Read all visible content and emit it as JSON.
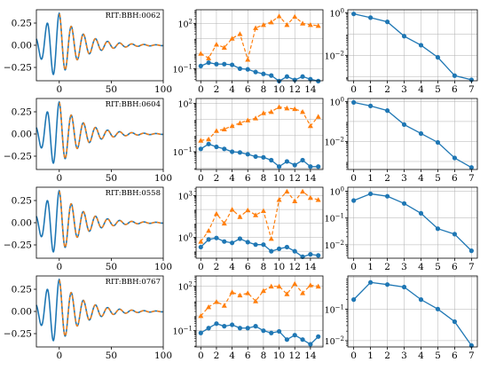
{
  "colors": {
    "blue": "#1f77b4",
    "orange": "#ff7f0e",
    "grid": "#b0b0b0"
  },
  "rows": [
    {
      "label": "RIT:BBH:0062",
      "wave": {
        "type": "line",
        "xlim": [
          -22,
          100
        ],
        "ylim": [
          -0.4,
          0.4
        ],
        "xticks": [
          0,
          50,
          100
        ],
        "yticks": [
          -0.25,
          0.0,
          0.25
        ],
        "ytick_labels": [
          "−0.25",
          "0.00",
          "0.25"
        ],
        "peak": 0.36,
        "omega": 0.54,
        "tau": 22
      },
      "series": {
        "type": "line",
        "scale": "log",
        "ylim_exp": [
          -1.8,
          2.9
        ],
        "major_exp": [
          -1,
          2
        ],
        "x": [
          0,
          1,
          2,
          3,
          4,
          5,
          6,
          7,
          8,
          9,
          10,
          11,
          12,
          13,
          14,
          15
        ],
        "blue": [
          0.15,
          0.25,
          0.2,
          0.2,
          0.18,
          0.1,
          0.09,
          0.06,
          0.045,
          0.035,
          0.015,
          0.03,
          0.018,
          0.03,
          0.02,
          0.015
        ],
        "orange": [
          1.0,
          0.5,
          4.0,
          2.5,
          10.0,
          20.0,
          0.4,
          50.0,
          80.0,
          120.0,
          300.0,
          80.0,
          280.0,
          100.0,
          80.0,
          70.0
        ]
      },
      "modes": {
        "type": "line",
        "scale": "log",
        "ylim_exp": [
          -3.2,
          0.15
        ],
        "major_exp": [
          -2,
          0
        ],
        "x": [
          0,
          1,
          2,
          3,
          4,
          5,
          6,
          7
        ],
        "values": [
          0.9,
          0.6,
          0.38,
          0.08,
          0.03,
          0.008,
          0.0011,
          0.0007
        ]
      }
    },
    {
      "label": "RIT:BBH:0604",
      "wave": {
        "type": "line",
        "xlim": [
          -22,
          100
        ],
        "ylim": [
          -0.4,
          0.4
        ],
        "xticks": [
          0,
          50,
          100
        ],
        "yticks": [
          -0.25,
          0.0,
          0.25
        ],
        "ytick_labels": [
          "−0.25",
          "0.00",
          "0.25"
        ],
        "peak": 0.36,
        "omega": 0.54,
        "tau": 22
      },
      "series": {
        "type": "line",
        "scale": "log",
        "ylim_exp": [
          -2.1,
          2.3
        ],
        "major_exp": [
          -1,
          2
        ],
        "x": [
          0,
          1,
          2,
          3,
          4,
          5,
          6,
          7,
          8,
          9,
          10,
          11,
          12,
          13,
          14,
          15
        ],
        "blue": [
          0.15,
          0.3,
          0.2,
          0.15,
          0.1,
          0.09,
          0.07,
          0.05,
          0.045,
          0.03,
          0.012,
          0.025,
          0.015,
          0.03,
          0.012,
          0.012
        ],
        "orange": [
          0.5,
          0.6,
          2.0,
          2.5,
          4.0,
          6.0,
          9.0,
          12.0,
          25.0,
          30.0,
          60.0,
          50.0,
          45.0,
          30.0,
          4.0,
          15.0
        ]
      },
      "modes": {
        "type": "line",
        "scale": "log",
        "ylim_exp": [
          -3.4,
          0.15
        ],
        "major_exp": [
          -2,
          0
        ],
        "x": [
          0,
          1,
          2,
          3,
          4,
          5,
          6,
          7
        ],
        "values": [
          0.9,
          0.6,
          0.35,
          0.07,
          0.025,
          0.009,
          0.0015,
          0.0005
        ]
      }
    },
    {
      "label": "RIT:BBH:0558",
      "wave": {
        "type": "line",
        "xlim": [
          -22,
          100
        ],
        "ylim": [
          -0.4,
          0.4
        ],
        "xticks": [
          0,
          50,
          100
        ],
        "yticks": [
          -0.25,
          0.0,
          0.25
        ],
        "ytick_labels": [
          "−0.25",
          "0.00",
          "0.25"
        ],
        "peak": 0.36,
        "omega": 0.54,
        "tau": 22
      },
      "series": {
        "type": "line",
        "scale": "log",
        "ylim_exp": [
          -1.5,
          3.6
        ],
        "major_exp": [
          0,
          3
        ],
        "x": [
          0,
          1,
          2,
          3,
          4,
          5,
          6,
          7,
          8,
          9,
          10,
          11,
          12,
          13,
          14,
          15
        ],
        "blue": [
          0.2,
          0.7,
          0.9,
          0.5,
          0.4,
          0.8,
          0.45,
          0.3,
          0.3,
          0.1,
          0.15,
          0.2,
          0.1,
          0.04,
          0.06,
          0.05
        ],
        "orange": [
          0.5,
          3.0,
          50.0,
          10.0,
          100.0,
          30.0,
          90.0,
          40.0,
          80.0,
          0.8,
          500.0,
          2000.0,
          400.0,
          2000.0,
          700.0,
          500.0
        ]
      },
      "modes": {
        "type": "line",
        "scale": "log",
        "ylim_exp": [
          -2.5,
          0.15
        ],
        "major_exp": [
          -2,
          -1,
          0
        ],
        "x": [
          0,
          1,
          2,
          3,
          4,
          5,
          6,
          7
        ],
        "values": [
          0.45,
          0.8,
          0.65,
          0.35,
          0.15,
          0.04,
          0.025,
          0.006
        ]
      }
    },
    {
      "label": "RIT:BBH:0767",
      "wave": {
        "type": "line",
        "xlim": [
          -22,
          100
        ],
        "ylim": [
          -0.4,
          0.4
        ],
        "xticks": [
          0,
          50,
          100
        ],
        "yticks": [
          -0.25,
          0.0,
          0.25
        ],
        "ytick_labels": [
          "−0.25",
          "0.00",
          "0.25"
        ],
        "peak": 0.36,
        "omega": 0.54,
        "tau": 22
      },
      "series": {
        "type": "line",
        "scale": "log",
        "ylim_exp": [
          -2.1,
          2.7
        ],
        "major_exp": [
          -1,
          2
        ],
        "x": [
          0,
          1,
          2,
          3,
          4,
          5,
          6,
          7,
          8,
          9,
          10,
          11,
          12,
          13,
          14,
          15
        ],
        "blue": [
          0.07,
          0.15,
          0.3,
          0.2,
          0.25,
          0.15,
          0.15,
          0.2,
          0.1,
          0.07,
          0.09,
          0.025,
          0.05,
          0.025,
          0.012,
          0.04
        ],
        "orange": [
          1.0,
          4.0,
          9.0,
          5.0,
          40.0,
          25.0,
          35.0,
          10.0,
          50.0,
          100.0,
          100.0,
          30.0,
          150.0,
          35.0,
          120.0,
          100.0
        ]
      },
      "modes": {
        "type": "line",
        "scale": "log",
        "ylim_exp": [
          -2.2,
          0.05
        ],
        "major_exp": [
          -2,
          -1
        ],
        "x": [
          0,
          1,
          2,
          3,
          4,
          5,
          6,
          7
        ],
        "values": [
          0.2,
          0.7,
          0.6,
          0.5,
          0.2,
          0.1,
          0.04,
          0.007
        ]
      }
    }
  ]
}
